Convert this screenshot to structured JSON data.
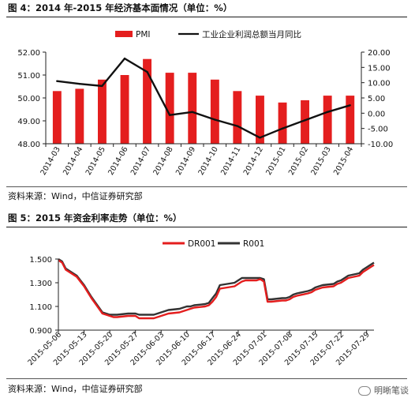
{
  "figure1": {
    "title": "图 4：2014 年-2015 年经济基本面情况（单位：%）",
    "source": "资料来源：Wind，中信证券研究部"
  },
  "figure2": {
    "title": "图 5：2015 年资金利率走势（单位：%）",
    "source": "资料来源：Wind，中信证券研究部"
  },
  "watermark": {
    "text": "明晰笔谈"
  },
  "colors": {
    "red": "#e41e1e",
    "black": "#111111",
    "dark": "#333333"
  },
  "chart_data": [
    {
      "type": "bar",
      "categories": [
        "2014-03",
        "2014-04",
        "2014-05",
        "2014-06",
        "2014-07",
        "2014-08",
        "2014-09",
        "2014-10",
        "2014-11",
        "2014-12",
        "2015-01",
        "2015-02",
        "2015-03",
        "2015-04"
      ],
      "series": [
        {
          "name": "PMI",
          "type": "bar",
          "axis": "left",
          "values": [
            50.3,
            50.4,
            50.8,
            51.0,
            51.7,
            51.1,
            51.1,
            50.8,
            50.3,
            50.1,
            49.8,
            49.9,
            50.1,
            50.1
          ]
        },
        {
          "name": "工业企业利润总额当月同比",
          "type": "line",
          "axis": "right",
          "values": [
            10.5,
            9.6,
            8.9,
            17.9,
            13.5,
            -0.6,
            0.4,
            -2.1,
            -4.2,
            -8.0,
            -5.0,
            -2.3,
            0.4,
            2.6
          ]
        }
      ],
      "y_left": {
        "min": 48.0,
        "max": 52.0,
        "ticks": [
          "48.00",
          "49.00",
          "50.00",
          "51.00",
          "52.00"
        ]
      },
      "y_right": {
        "min": -10.0,
        "max": 20.0,
        "ticks": [
          "-10.00",
          "-5.00",
          "0.00",
          "5.00",
          "10.00",
          "15.00",
          "20.00"
        ]
      },
      "grid": false,
      "legend": "top"
    },
    {
      "type": "line",
      "x_ticks": [
        "2015-05-06",
        "2015-05-13",
        "2015-05-20",
        "2015-05-27",
        "2015-06-03",
        "2015-06-10",
        "2015-06-17",
        "2015-06-24",
        "2015-07-01",
        "2015-07-08",
        "2015-07-15",
        "2015-07-22",
        "2015-07-29"
      ],
      "x_start": "2015-05-06",
      "x_end": "2015-07-31",
      "series": [
        {
          "name": "DR001",
          "points": [
            [
              "2015-05-06",
              1.49
            ],
            [
              "2015-05-07",
              1.47
            ],
            [
              "2015-05-08",
              1.41
            ],
            [
              "2015-05-11",
              1.35
            ],
            [
              "2015-05-12",
              1.31
            ],
            [
              "2015-05-13",
              1.27
            ],
            [
              "2015-05-14",
              1.22
            ],
            [
              "2015-05-15",
              1.17
            ],
            [
              "2015-05-18",
              1.04
            ],
            [
              "2015-05-19",
              1.03
            ],
            [
              "2015-05-20",
              1.02
            ],
            [
              "2015-05-21",
              1.01
            ],
            [
              "2015-05-22",
              1.01
            ],
            [
              "2015-05-25",
              1.02
            ],
            [
              "2015-05-26",
              1.02
            ],
            [
              "2015-05-27",
              1.02
            ],
            [
              "2015-05-28",
              1.0
            ],
            [
              "2015-05-29",
              1.0
            ],
            [
              "2015-06-01",
              1.0
            ],
            [
              "2015-06-02",
              1.01
            ],
            [
              "2015-06-03",
              1.02
            ],
            [
              "2015-06-04",
              1.03
            ],
            [
              "2015-06-05",
              1.04
            ],
            [
              "2015-06-08",
              1.05
            ],
            [
              "2015-06-09",
              1.06
            ],
            [
              "2015-06-10",
              1.07
            ],
            [
              "2015-06-11",
              1.08
            ],
            [
              "2015-06-12",
              1.09
            ],
            [
              "2015-06-15",
              1.1
            ],
            [
              "2015-06-16",
              1.11
            ],
            [
              "2015-06-17",
              1.14
            ],
            [
              "2015-06-18",
              1.18
            ],
            [
              "2015-06-19",
              1.25
            ],
            [
              "2015-06-23",
              1.27
            ],
            [
              "2015-06-24",
              1.29
            ],
            [
              "2015-06-25",
              1.31
            ],
            [
              "2015-06-26",
              1.32
            ],
            [
              "2015-06-29",
              1.32
            ],
            [
              "2015-06-30",
              1.33
            ],
            [
              "2015-07-01",
              1.31
            ],
            [
              "2015-07-02",
              1.14
            ],
            [
              "2015-07-03",
              1.14
            ],
            [
              "2015-07-06",
              1.15
            ],
            [
              "2015-07-07",
              1.15
            ],
            [
              "2015-07-08",
              1.16
            ],
            [
              "2015-07-09",
              1.18
            ],
            [
              "2015-07-10",
              1.19
            ],
            [
              "2015-07-13",
              1.21
            ],
            [
              "2015-07-14",
              1.22
            ],
            [
              "2015-07-15",
              1.24
            ],
            [
              "2015-07-16",
              1.25
            ],
            [
              "2015-07-17",
              1.26
            ],
            [
              "2015-07-20",
              1.27
            ],
            [
              "2015-07-21",
              1.29
            ],
            [
              "2015-07-22",
              1.3
            ],
            [
              "2015-07-23",
              1.32
            ],
            [
              "2015-07-24",
              1.34
            ],
            [
              "2015-07-27",
              1.36
            ],
            [
              "2015-07-28",
              1.39
            ],
            [
              "2015-07-29",
              1.41
            ],
            [
              "2015-07-30",
              1.43
            ],
            [
              "2015-07-31",
              1.45
            ]
          ]
        },
        {
          "name": "R001",
          "points": [
            [
              "2015-05-06",
              1.5
            ],
            [
              "2015-05-07",
              1.48
            ],
            [
              "2015-05-08",
              1.42
            ],
            [
              "2015-05-11",
              1.36
            ],
            [
              "2015-05-12",
              1.32
            ],
            [
              "2015-05-13",
              1.28
            ],
            [
              "2015-05-14",
              1.23
            ],
            [
              "2015-05-15",
              1.18
            ],
            [
              "2015-05-18",
              1.05
            ],
            [
              "2015-05-19",
              1.04
            ],
            [
              "2015-05-20",
              1.03
            ],
            [
              "2015-05-21",
              1.03
            ],
            [
              "2015-05-22",
              1.03
            ],
            [
              "2015-05-25",
              1.04
            ],
            [
              "2015-05-26",
              1.04
            ],
            [
              "2015-05-27",
              1.04
            ],
            [
              "2015-05-28",
              1.03
            ],
            [
              "2015-05-29",
              1.03
            ],
            [
              "2015-06-01",
              1.03
            ],
            [
              "2015-06-02",
              1.04
            ],
            [
              "2015-06-03",
              1.05
            ],
            [
              "2015-06-04",
              1.06
            ],
            [
              "2015-06-05",
              1.07
            ],
            [
              "2015-06-08",
              1.08
            ],
            [
              "2015-06-09",
              1.09
            ],
            [
              "2015-06-10",
              1.1
            ],
            [
              "2015-06-11",
              1.1
            ],
            [
              "2015-06-12",
              1.11
            ],
            [
              "2015-06-15",
              1.12
            ],
            [
              "2015-06-16",
              1.13
            ],
            [
              "2015-06-17",
              1.17
            ],
            [
              "2015-06-18",
              1.21
            ],
            [
              "2015-06-19",
              1.28
            ],
            [
              "2015-06-23",
              1.3
            ],
            [
              "2015-06-24",
              1.32
            ],
            [
              "2015-06-25",
              1.34
            ],
            [
              "2015-06-26",
              1.34
            ],
            [
              "2015-06-29",
              1.34
            ],
            [
              "2015-06-30",
              1.34
            ],
            [
              "2015-07-01",
              1.33
            ],
            [
              "2015-07-02",
              1.16
            ],
            [
              "2015-07-03",
              1.16
            ],
            [
              "2015-07-06",
              1.17
            ],
            [
              "2015-07-07",
              1.17
            ],
            [
              "2015-07-08",
              1.18
            ],
            [
              "2015-07-09",
              1.2
            ],
            [
              "2015-07-10",
              1.21
            ],
            [
              "2015-07-13",
              1.23
            ],
            [
              "2015-07-14",
              1.24
            ],
            [
              "2015-07-15",
              1.26
            ],
            [
              "2015-07-16",
              1.27
            ],
            [
              "2015-07-17",
              1.28
            ],
            [
              "2015-07-20",
              1.29
            ],
            [
              "2015-07-21",
              1.31
            ],
            [
              "2015-07-22",
              1.32
            ],
            [
              "2015-07-23",
              1.34
            ],
            [
              "2015-07-24",
              1.36
            ],
            [
              "2015-07-27",
              1.38
            ],
            [
              "2015-07-28",
              1.41
            ],
            [
              "2015-07-29",
              1.43
            ],
            [
              "2015-07-30",
              1.45
            ],
            [
              "2015-07-31",
              1.47
            ]
          ]
        }
      ],
      "y": {
        "min": 0.9,
        "max": 1.5,
        "ticks": [
          "0.900",
          "1.100",
          "1.300",
          "1.500"
        ]
      },
      "grid": false,
      "legend": "top"
    }
  ]
}
